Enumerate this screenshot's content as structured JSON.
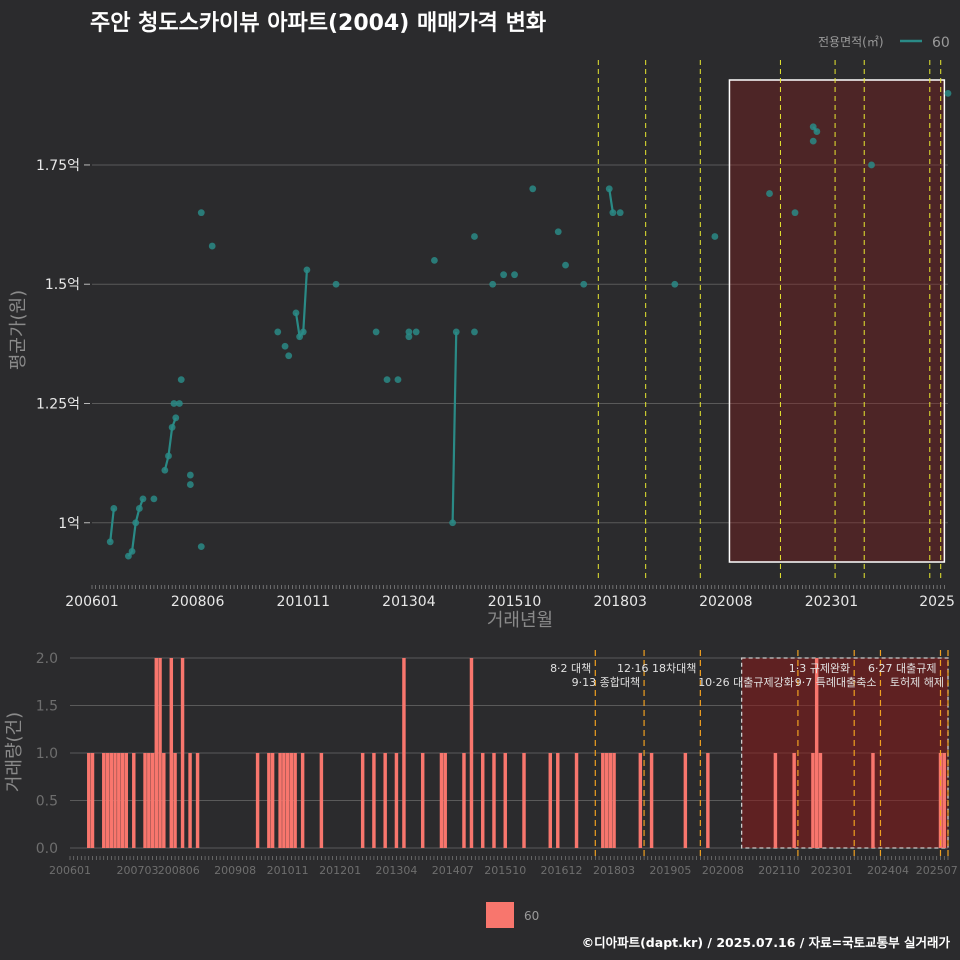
{
  "colors": {
    "background": "#2b2b2d",
    "line": "#2a8a86",
    "bar": "#f8766d",
    "highlight_fill": "#8b1a1a",
    "vline": "#e8e830",
    "vline_bar": "#f0a020",
    "grid": "#5a5a5a"
  },
  "chart_data": [
    {
      "type": "line",
      "title": "주안 청도스카이뷰 아파트(2004) 매매가격 변화",
      "xlabel": "거래년월",
      "ylabel": "평균가(원)",
      "legend_title": "전용면적(㎡)",
      "legend_entry": "60",
      "x_unit": "month_index_from_200601",
      "xlim": [
        0,
        235
      ],
      "ylim": [
        0.88,
        1.97
      ],
      "y_ticks": [
        1.0,
        1.25,
        1.5,
        1.75
      ],
      "y_tick_labels": [
        "1억",
        "1.25억",
        "1.5억",
        "1.75억"
      ],
      "x_ticks": [
        0,
        29,
        58,
        87,
        116,
        145,
        174,
        203,
        232
      ],
      "x_tick_labels": [
        "200601",
        "200806",
        "201011",
        "201304",
        "201510",
        "201803",
        "202008",
        "202301",
        "2025"
      ],
      "policy_lines": [
        139,
        152,
        167,
        189,
        204,
        212,
        230,
        233
      ],
      "highlight_range": [
        175,
        234
      ],
      "series": [
        {
          "name": "60",
          "points": [
            [
              5,
              0.96
            ],
            [
              6,
              1.03
            ],
            [
              10,
              0.93
            ],
            [
              11,
              0.94
            ],
            [
              12,
              1.0
            ],
            [
              13,
              1.03
            ],
            [
              14,
              1.05
            ],
            [
              17,
              1.05
            ],
            [
              20,
              1.11
            ],
            [
              21,
              1.14
            ],
            [
              22,
              1.2
            ],
            [
              22.5,
              1.25
            ],
            [
              23,
              1.22
            ],
            [
              24,
              1.25
            ],
            [
              24.5,
              1.3
            ],
            [
              27,
              1.1
            ],
            [
              27,
              1.08
            ],
            [
              30,
              1.65
            ],
            [
              30,
              0.95
            ],
            [
              33,
              1.58
            ],
            [
              51,
              1.4
            ],
            [
              53,
              1.37
            ],
            [
              54,
              1.35
            ],
            [
              56,
              1.44
            ],
            [
              57,
              1.39
            ],
            [
              58,
              1.4
            ],
            [
              59,
              1.53
            ],
            [
              67,
              1.5
            ],
            [
              78,
              1.4
            ],
            [
              81,
              1.3
            ],
            [
              84,
              1.3
            ],
            [
              87,
              1.39
            ],
            [
              87,
              1.4
            ],
            [
              89,
              1.4
            ],
            [
              94,
              1.55
            ],
            [
              99,
              1.0
            ],
            [
              100,
              1.4
            ],
            [
              105,
              1.4
            ],
            [
              105,
              1.6
            ],
            [
              110,
              1.5
            ],
            [
              113,
              1.52
            ],
            [
              116,
              1.52
            ],
            [
              121,
              1.7
            ],
            [
              128,
              1.61
            ],
            [
              130,
              1.54
            ],
            [
              135,
              1.5
            ],
            [
              142,
              1.7
            ],
            [
              143,
              1.65
            ],
            [
              145,
              1.65
            ],
            [
              160,
              1.5
            ],
            [
              171,
              1.6
            ],
            [
              186,
              1.69
            ],
            [
              193,
              1.65
            ],
            [
              198,
              1.8
            ],
            [
              198,
              1.83
            ],
            [
              199,
              1.82
            ],
            [
              214,
              1.75
            ],
            [
              235,
              1.9
            ]
          ],
          "segments": [
            [
              [
                5,
                0.96
              ],
              [
                6,
                1.03
              ]
            ],
            [
              [
                10,
                0.93
              ],
              [
                11,
                0.94
              ],
              [
                12,
                1.0
              ],
              [
                13,
                1.03
              ],
              [
                14,
                1.05
              ]
            ],
            [
              [
                20,
                1.11
              ],
              [
                21,
                1.14
              ],
              [
                22,
                1.2
              ],
              [
                23,
                1.22
              ]
            ],
            [
              [
                56,
                1.44
              ],
              [
                57,
                1.39
              ],
              [
                58,
                1.4
              ],
              [
                59,
                1.53
              ]
            ],
            [
              [
                99,
                1.0
              ],
              [
                100,
                1.4
              ]
            ],
            [
              [
                142,
                1.7
              ],
              [
                143,
                1.65
              ]
            ],
            [
              [
                198,
                1.83
              ],
              [
                199,
                1.82
              ]
            ]
          ]
        }
      ]
    },
    {
      "type": "bar",
      "ylabel": "거래량(건)",
      "legend_entry": "60",
      "x_unit": "month_index_from_200601",
      "xlim": [
        0,
        234
      ],
      "ylim": [
        0,
        2.0
      ],
      "y_ticks": [
        0,
        0.5,
        1.0,
        1.5,
        2.0
      ],
      "y_tick_labels": [
        "0.0",
        "0.5",
        "1.0",
        "1.5",
        "2.0"
      ],
      "x_ticks": [
        0,
        18,
        29,
        44,
        58,
        72,
        87,
        102,
        116,
        131,
        145,
        160,
        174,
        189,
        203,
        218,
        231
      ],
      "x_tick_labels": [
        "200601",
        "200703",
        "200806",
        "200908",
        "201011",
        "201201",
        "201304",
        "201407",
        "201510",
        "201612",
        "201803",
        "201905",
        "202008",
        "202110",
        "202301",
        "202404",
        "202507"
      ],
      "highlight_range": [
        179,
        234
      ],
      "policy_lines": [
        {
          "x": 140,
          "label": "8·2 대책"
        },
        {
          "x": 153,
          "label": "9·13 종합대책"
        },
        {
          "x": 168,
          "label": "12·16 18차대책"
        },
        {
          "x": 194,
          "label": "10·26 대출규제강화"
        },
        {
          "x": 209,
          "label": "1·3 규제완화"
        },
        {
          "x": 216,
          "label": "9·7 특례대출축소"
        },
        {
          "x": 232,
          "label": "6·27 대출규제"
        },
        {
          "x": 234,
          "label": "토허제 해제"
        }
      ],
      "values": [
        [
          5,
          1
        ],
        [
          6,
          1
        ],
        [
          9,
          1
        ],
        [
          10,
          1
        ],
        [
          11,
          1
        ],
        [
          12,
          1
        ],
        [
          13,
          1
        ],
        [
          14,
          1
        ],
        [
          15,
          1
        ],
        [
          17,
          1
        ],
        [
          20,
          1
        ],
        [
          21,
          1
        ],
        [
          22,
          1
        ],
        [
          23,
          2
        ],
        [
          24,
          2
        ],
        [
          25,
          1
        ],
        [
          27,
          2
        ],
        [
          28,
          1
        ],
        [
          30,
          2
        ],
        [
          32,
          1
        ],
        [
          34,
          1
        ],
        [
          50,
          1
        ],
        [
          53,
          1
        ],
        [
          54,
          1
        ],
        [
          56,
          1
        ],
        [
          57,
          1
        ],
        [
          58,
          1
        ],
        [
          59,
          1
        ],
        [
          60,
          1
        ],
        [
          62,
          1
        ],
        [
          67,
          1
        ],
        [
          78,
          1
        ],
        [
          81,
          1
        ],
        [
          84,
          1
        ],
        [
          87,
          1
        ],
        [
          89,
          2
        ],
        [
          94,
          1
        ],
        [
          99,
          1
        ],
        [
          100,
          1
        ],
        [
          105,
          1
        ],
        [
          107,
          2
        ],
        [
          110,
          1
        ],
        [
          113,
          1
        ],
        [
          116,
          1
        ],
        [
          121,
          1
        ],
        [
          128,
          1
        ],
        [
          130,
          1
        ],
        [
          135,
          1
        ],
        [
          142,
          1
        ],
        [
          143,
          1
        ],
        [
          144,
          1
        ],
        [
          145,
          1
        ],
        [
          152,
          1
        ],
        [
          155,
          1
        ],
        [
          164,
          1
        ],
        [
          170,
          1
        ],
        [
          188,
          1
        ],
        [
          193,
          1
        ],
        [
          198,
          1
        ],
        [
          199,
          2
        ],
        [
          200,
          1
        ],
        [
          214,
          1
        ],
        [
          232,
          1
        ],
        [
          233,
          1
        ]
      ]
    }
  ],
  "credit": "©디아파트(dapt.kr) / 2025.07.16 / 자료=국토교통부 실거래가"
}
